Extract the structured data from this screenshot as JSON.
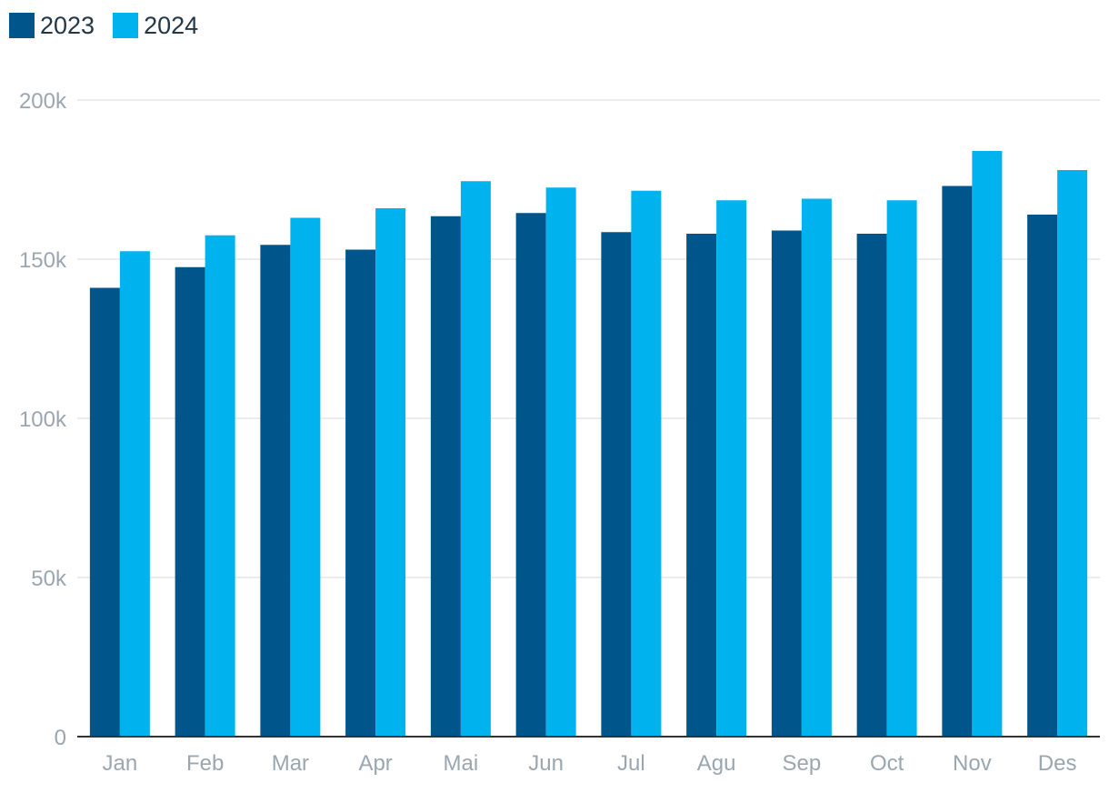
{
  "chart_data": {
    "type": "bar",
    "categories": [
      "Jan",
      "Feb",
      "Mar",
      "Apr",
      "Mai",
      "Jun",
      "Jul",
      "Agu",
      "Sep",
      "Oct",
      "Nov",
      "Des"
    ],
    "series": [
      {
        "name": "2023",
        "color": "#00558a",
        "values": [
          141000,
          147500,
          154500,
          153000,
          163500,
          164500,
          158500,
          158000,
          159000,
          158000,
          173000,
          164000
        ]
      },
      {
        "name": "2024",
        "color": "#00b2ee",
        "values": [
          152500,
          157500,
          163000,
          166000,
          174500,
          172500,
          171500,
          168500,
          169000,
          168500,
          184000,
          178000
        ]
      }
    ],
    "yticks": [
      0,
      50000,
      100000,
      150000,
      200000
    ],
    "ytick_labels": [
      "0",
      "50k",
      "100k",
      "150k",
      "200k"
    ],
    "ylim": [
      0,
      200000
    ],
    "grid": true,
    "legend_position": "top-left",
    "title": "",
    "xlabel": "",
    "ylabel": ""
  }
}
